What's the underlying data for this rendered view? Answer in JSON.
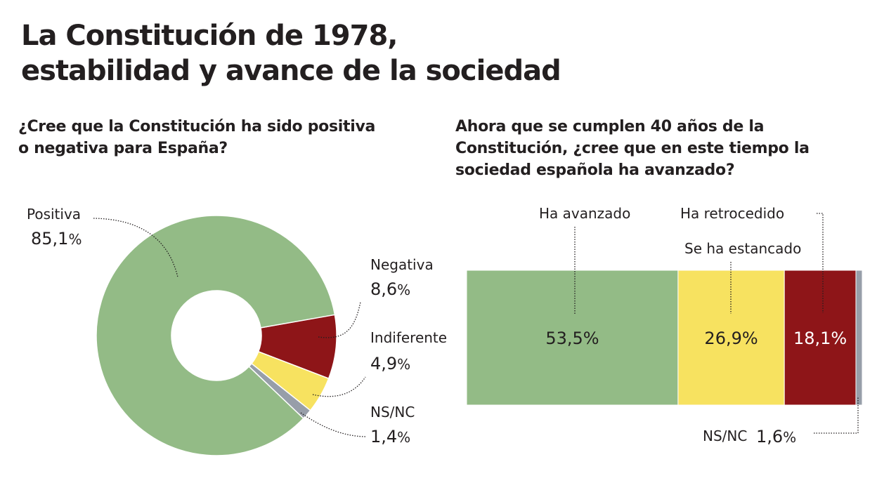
{
  "title": {
    "line1": "La Constitución de 1978,",
    "line2": "estabilidad y avance de la sociedad"
  },
  "chart_data": [
    {
      "type": "pie",
      "variant": "donut",
      "title": "¿Cree que la Constitución ha sido positiva o negativa para España?",
      "title_lines": [
        "¿Cree que la Constitución ha sido positiva",
        "o negativa para España?"
      ],
      "categories": [
        "Positiva",
        "Negativa",
        "Indiferente",
        "NS/NC"
      ],
      "values": [
        85.1,
        8.6,
        4.9,
        1.4
      ],
      "value_labels": [
        "85,1%",
        "8,6%",
        "4,9%",
        "1,4%"
      ],
      "colors": [
        "#93bb86",
        "#8e1518",
        "#f7e260",
        "#979ea9"
      ],
      "unit": "%"
    },
    {
      "type": "bar",
      "variant": "stacked-horizontal-100",
      "title": "Ahora que se cumplen 40 años de la Constitución, ¿cree que en este tiempo la sociedad española ha avanzado?",
      "title_lines": [
        "Ahora que se cumplen 40 años de la",
        "Constitución, ¿cree que en este tiempo la",
        "sociedad española ha avanzado?"
      ],
      "categories": [
        "Ha avanzado",
        "Se ha estancado",
        "Ha retrocedido",
        "NS/NC"
      ],
      "values": [
        53.5,
        26.9,
        18.1,
        1.6
      ],
      "value_labels": [
        "53,5%",
        "26,9%",
        "18,1%",
        "1,6%"
      ],
      "colors": [
        "#93bb86",
        "#f7e260",
        "#8e1518",
        "#979ea9"
      ],
      "unit": "%"
    }
  ]
}
